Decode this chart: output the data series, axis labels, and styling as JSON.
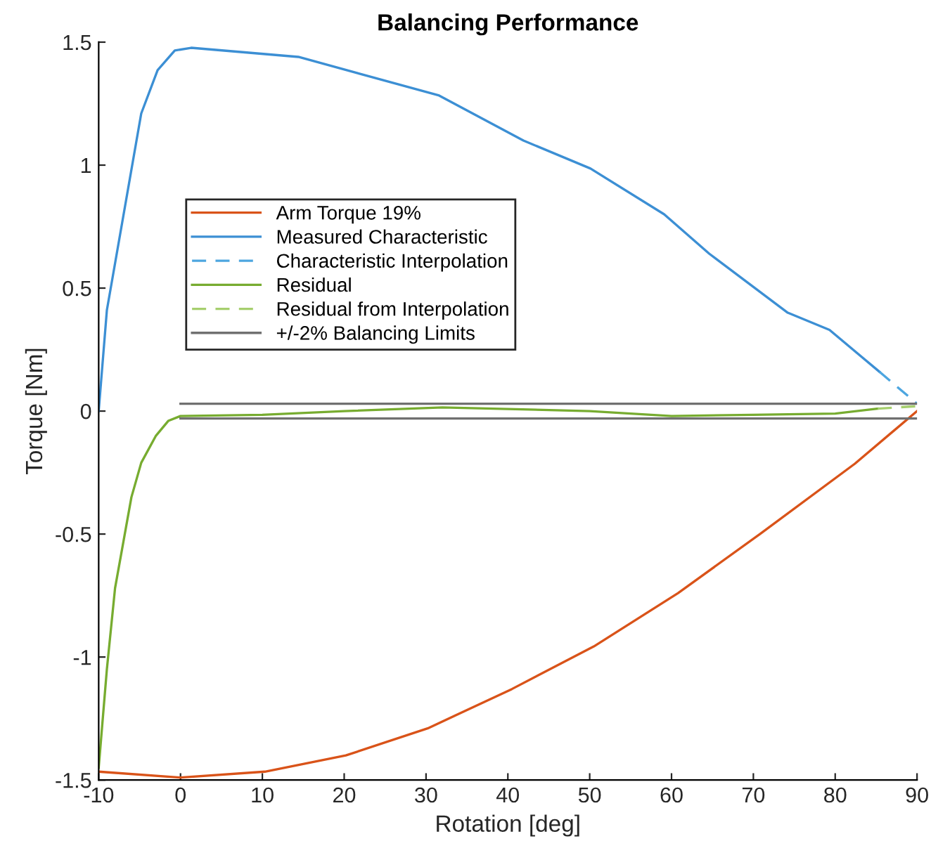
{
  "chart_data": {
    "type": "line",
    "title": "Balancing Performance",
    "xlabel": "Rotation [deg]",
    "ylabel": "Torque [Nm]",
    "xlim": [
      -10,
      90
    ],
    "xticks": [
      -10,
      0,
      10,
      20,
      30,
      40,
      50,
      60,
      70,
      80,
      90
    ],
    "ylim": [
      -1.5,
      1.5
    ],
    "yticks": [
      -1.5,
      -1,
      -0.5,
      0,
      0.5,
      1,
      1.5
    ],
    "grid": false,
    "legend": "top left",
    "marker": "none",
    "series": [
      {
        "name": "Arm Torque 19%",
        "color": "#d95319",
        "line_style": "solid",
        "x": [
          -10,
          0,
          10.3,
          20.2,
          30.2,
          40.5,
          50.5,
          60.8,
          70.8,
          82.4,
          90
        ],
        "values": [
          -1.466,
          -1.49,
          -1.466,
          -1.4,
          -1.29,
          -1.13,
          -0.957,
          -0.74,
          -0.5,
          -0.214,
          0.0
        ]
      },
      {
        "name": "Measured Characteristic",
        "color": "#3c8fd4",
        "line_style": "solid",
        "x": [
          -10,
          -9,
          -4.8,
          -2.8,
          -0.7,
          1.3,
          14.4,
          31.6,
          41.9,
          50.1,
          59.1,
          64.6,
          74.2,
          79.3,
          85.4
        ],
        "values": [
          0.0,
          0.41,
          1.21,
          1.386,
          1.466,
          1.477,
          1.44,
          1.283,
          1.1,
          0.986,
          0.8,
          0.64,
          0.4,
          0.33,
          0.16
        ]
      },
      {
        "name": "Characteristic Interpolation",
        "color": "#4da6e0",
        "line_style": "dashed",
        "x": [
          85.4,
          90
        ],
        "values": [
          0.16,
          0.03
        ]
      },
      {
        "name": "Residual",
        "color": "#77ac30",
        "line_style": "solid",
        "x": [
          -10,
          -9,
          -8,
          -6,
          -4.8,
          -3,
          -1.5,
          0,
          10,
          20,
          32,
          50,
          60,
          70,
          80,
          85.2
        ],
        "values": [
          -1.45,
          -1.05,
          -0.72,
          -0.35,
          -0.21,
          -0.1,
          -0.04,
          -0.02,
          -0.015,
          0.0,
          0.015,
          0.0,
          -0.02,
          -0.015,
          -0.01,
          0.01
        ]
      },
      {
        "name": "Residual from Interpolation",
        "color": "#a6cf6e",
        "line_style": "dashed",
        "x": [
          85.2,
          90
        ],
        "values": [
          0.01,
          0.02
        ]
      },
      {
        "name": "+/-2% Balancing Limits",
        "color": "#707070",
        "line_style": "solid",
        "x": [
          0,
          90
        ],
        "values": [
          0.03,
          0.03
        ]
      },
      {
        "color": "#707070",
        "line_style": "solid",
        "x": [
          0,
          90
        ],
        "values": [
          -0.03,
          -0.03
        ]
      }
    ]
  }
}
